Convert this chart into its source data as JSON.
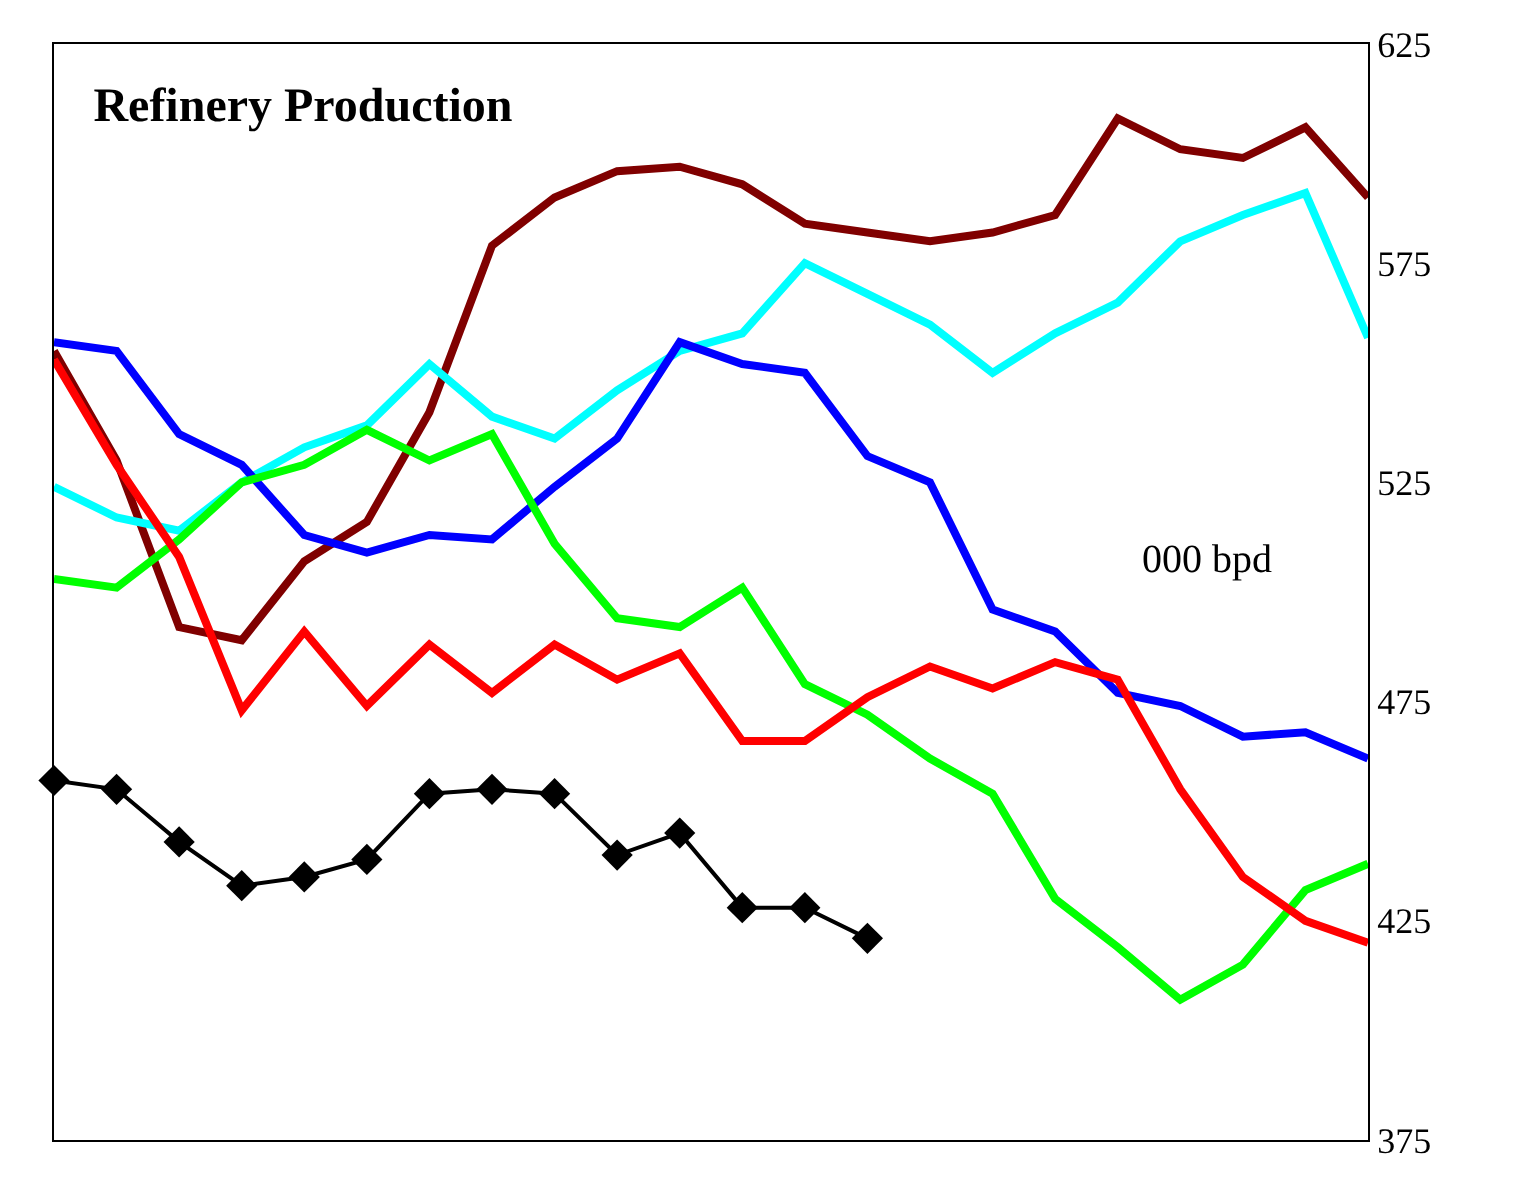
{
  "chart_data": {
    "type": "line",
    "title": "Refinery Production",
    "annotations": [
      "000 bpd"
    ],
    "categories": [
      null,
      null,
      null,
      null,
      null,
      null,
      null,
      null,
      null,
      null,
      null,
      null,
      null,
      null,
      null,
      null,
      null,
      null,
      null,
      null,
      null,
      null
    ],
    "ylim": [
      375,
      625
    ],
    "yticks": [
      375,
      425,
      475,
      525,
      575,
      625
    ],
    "tick_labels": "y",
    "series": [
      {
        "color": "#800000",
        "values": [
          555,
          530,
          492,
          489,
          507,
          516,
          541,
          579,
          590,
          596,
          597,
          593,
          584,
          582,
          580,
          582,
          586,
          608,
          601,
          599,
          606,
          590
        ]
      },
      {
        "color": "#00ffff",
        "values": [
          524,
          517,
          514,
          525,
          533,
          538,
          552,
          540,
          535,
          546,
          555,
          559,
          575,
          568,
          561,
          550,
          559,
          566,
          580,
          586,
          591,
          558
        ]
      },
      {
        "color": "#0000ff",
        "values": [
          557,
          555,
          536,
          529,
          513,
          509,
          513,
          512,
          524,
          535,
          557,
          552,
          550,
          531,
          525,
          496,
          491,
          477,
          474,
          467,
          468,
          462
        ]
      },
      {
        "color": "#00ff00",
        "values": [
          503,
          501,
          512,
          525,
          529,
          537,
          530,
          536,
          511,
          494,
          492,
          501,
          479,
          472,
          462,
          454,
          430,
          419,
          407,
          415,
          432,
          438
        ]
      },
      {
        "color": "#ff0000",
        "values": [
          553,
          529,
          508,
          473,
          491,
          474,
          488,
          477,
          488,
          480,
          486,
          466,
          466,
          476,
          483,
          478,
          484,
          480,
          455,
          435,
          425,
          420
        ]
      },
      {
        "color": "#000000",
        "marker": "diamond",
        "values": [
          457,
          455,
          443,
          433,
          435,
          439,
          454,
          455,
          454,
          440,
          445,
          428,
          428,
          421,
          null,
          null,
          null,
          null,
          null,
          null,
          null,
          null
        ]
      }
    ]
  }
}
